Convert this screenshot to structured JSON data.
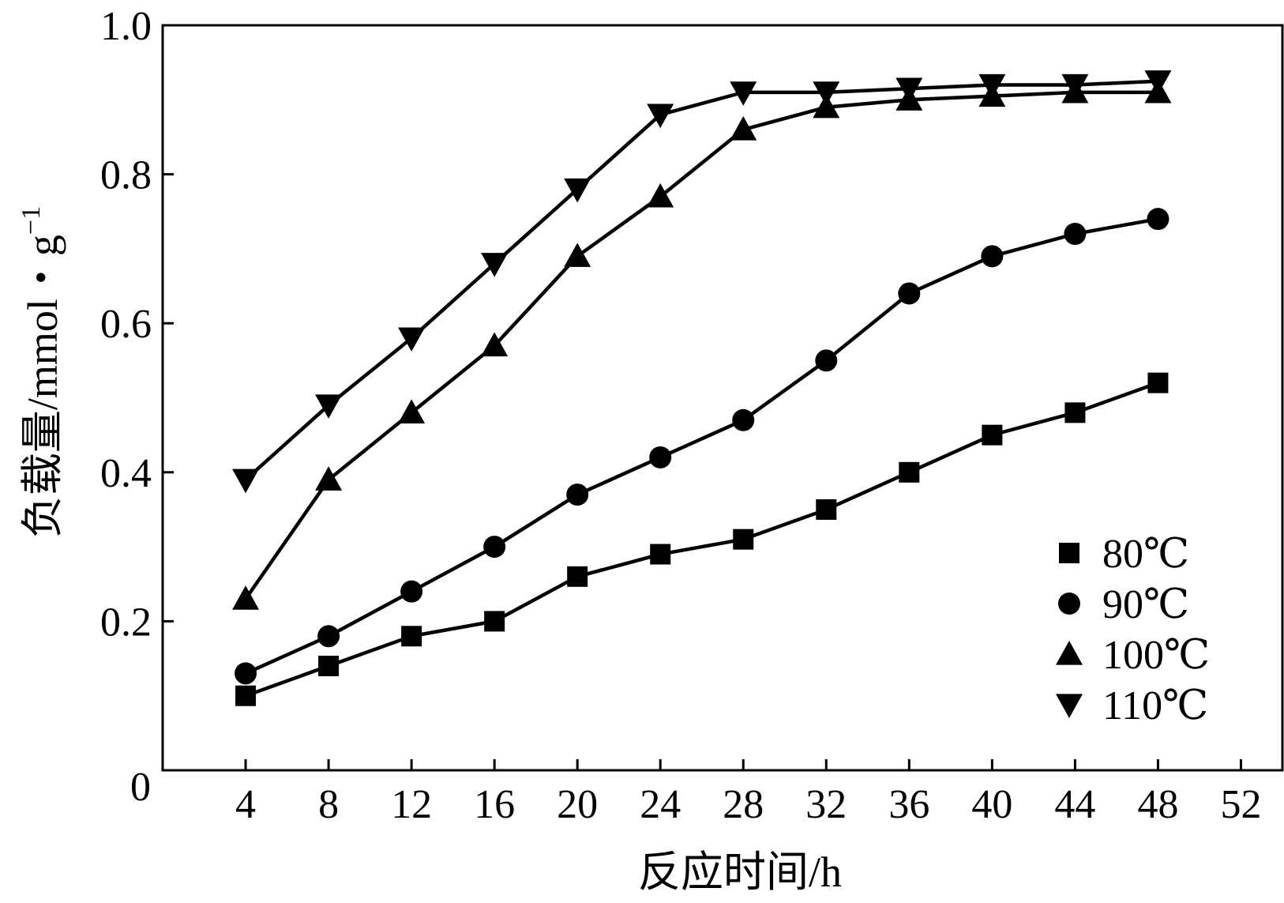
{
  "chart_data": {
    "type": "line",
    "xlabel": "反应时间/h",
    "ylabel": "负载量/mmol・g",
    "ylabel_superscript": "−1",
    "xlim": [
      0,
      54
    ],
    "ylim": [
      0,
      1.0
    ],
    "x_ticks": [
      4,
      8,
      12,
      16,
      20,
      24,
      28,
      32,
      36,
      40,
      44,
      48,
      52
    ],
    "x_tick_labels": [
      "4",
      "8",
      "12",
      "16",
      "20",
      "24",
      "28",
      "32",
      "36",
      "40",
      "44",
      "48",
      "52"
    ],
    "y_ticks": [
      0.2,
      0.4,
      0.6,
      0.8,
      1.0
    ],
    "y_tick_labels": [
      "0.2",
      "0.4",
      "0.6",
      "0.8",
      "1.0"
    ],
    "origin_label": "0",
    "grid": false,
    "legend_position": "bottom-right",
    "x": [
      4,
      8,
      12,
      16,
      20,
      24,
      28,
      32,
      36,
      40,
      44,
      48
    ],
    "series": [
      {
        "name": "80℃",
        "marker": "square",
        "values": [
          0.1,
          0.14,
          0.18,
          0.2,
          0.26,
          0.29,
          0.31,
          0.35,
          0.4,
          0.45,
          0.48,
          0.52
        ]
      },
      {
        "name": "90℃",
        "marker": "circle",
        "values": [
          0.13,
          0.18,
          0.24,
          0.3,
          0.37,
          0.42,
          0.47,
          0.55,
          0.64,
          0.69,
          0.72,
          0.74
        ]
      },
      {
        "name": "100℃",
        "marker": "triangle-up",
        "values": [
          0.23,
          0.39,
          0.48,
          0.57,
          0.69,
          0.77,
          0.86,
          0.89,
          0.9,
          0.905,
          0.91,
          0.91
        ]
      },
      {
        "name": "110℃",
        "marker": "triangle-down",
        "values": [
          0.39,
          0.49,
          0.58,
          0.68,
          0.78,
          0.88,
          0.91,
          0.91,
          0.915,
          0.92,
          0.92,
          0.925
        ]
      }
    ]
  }
}
